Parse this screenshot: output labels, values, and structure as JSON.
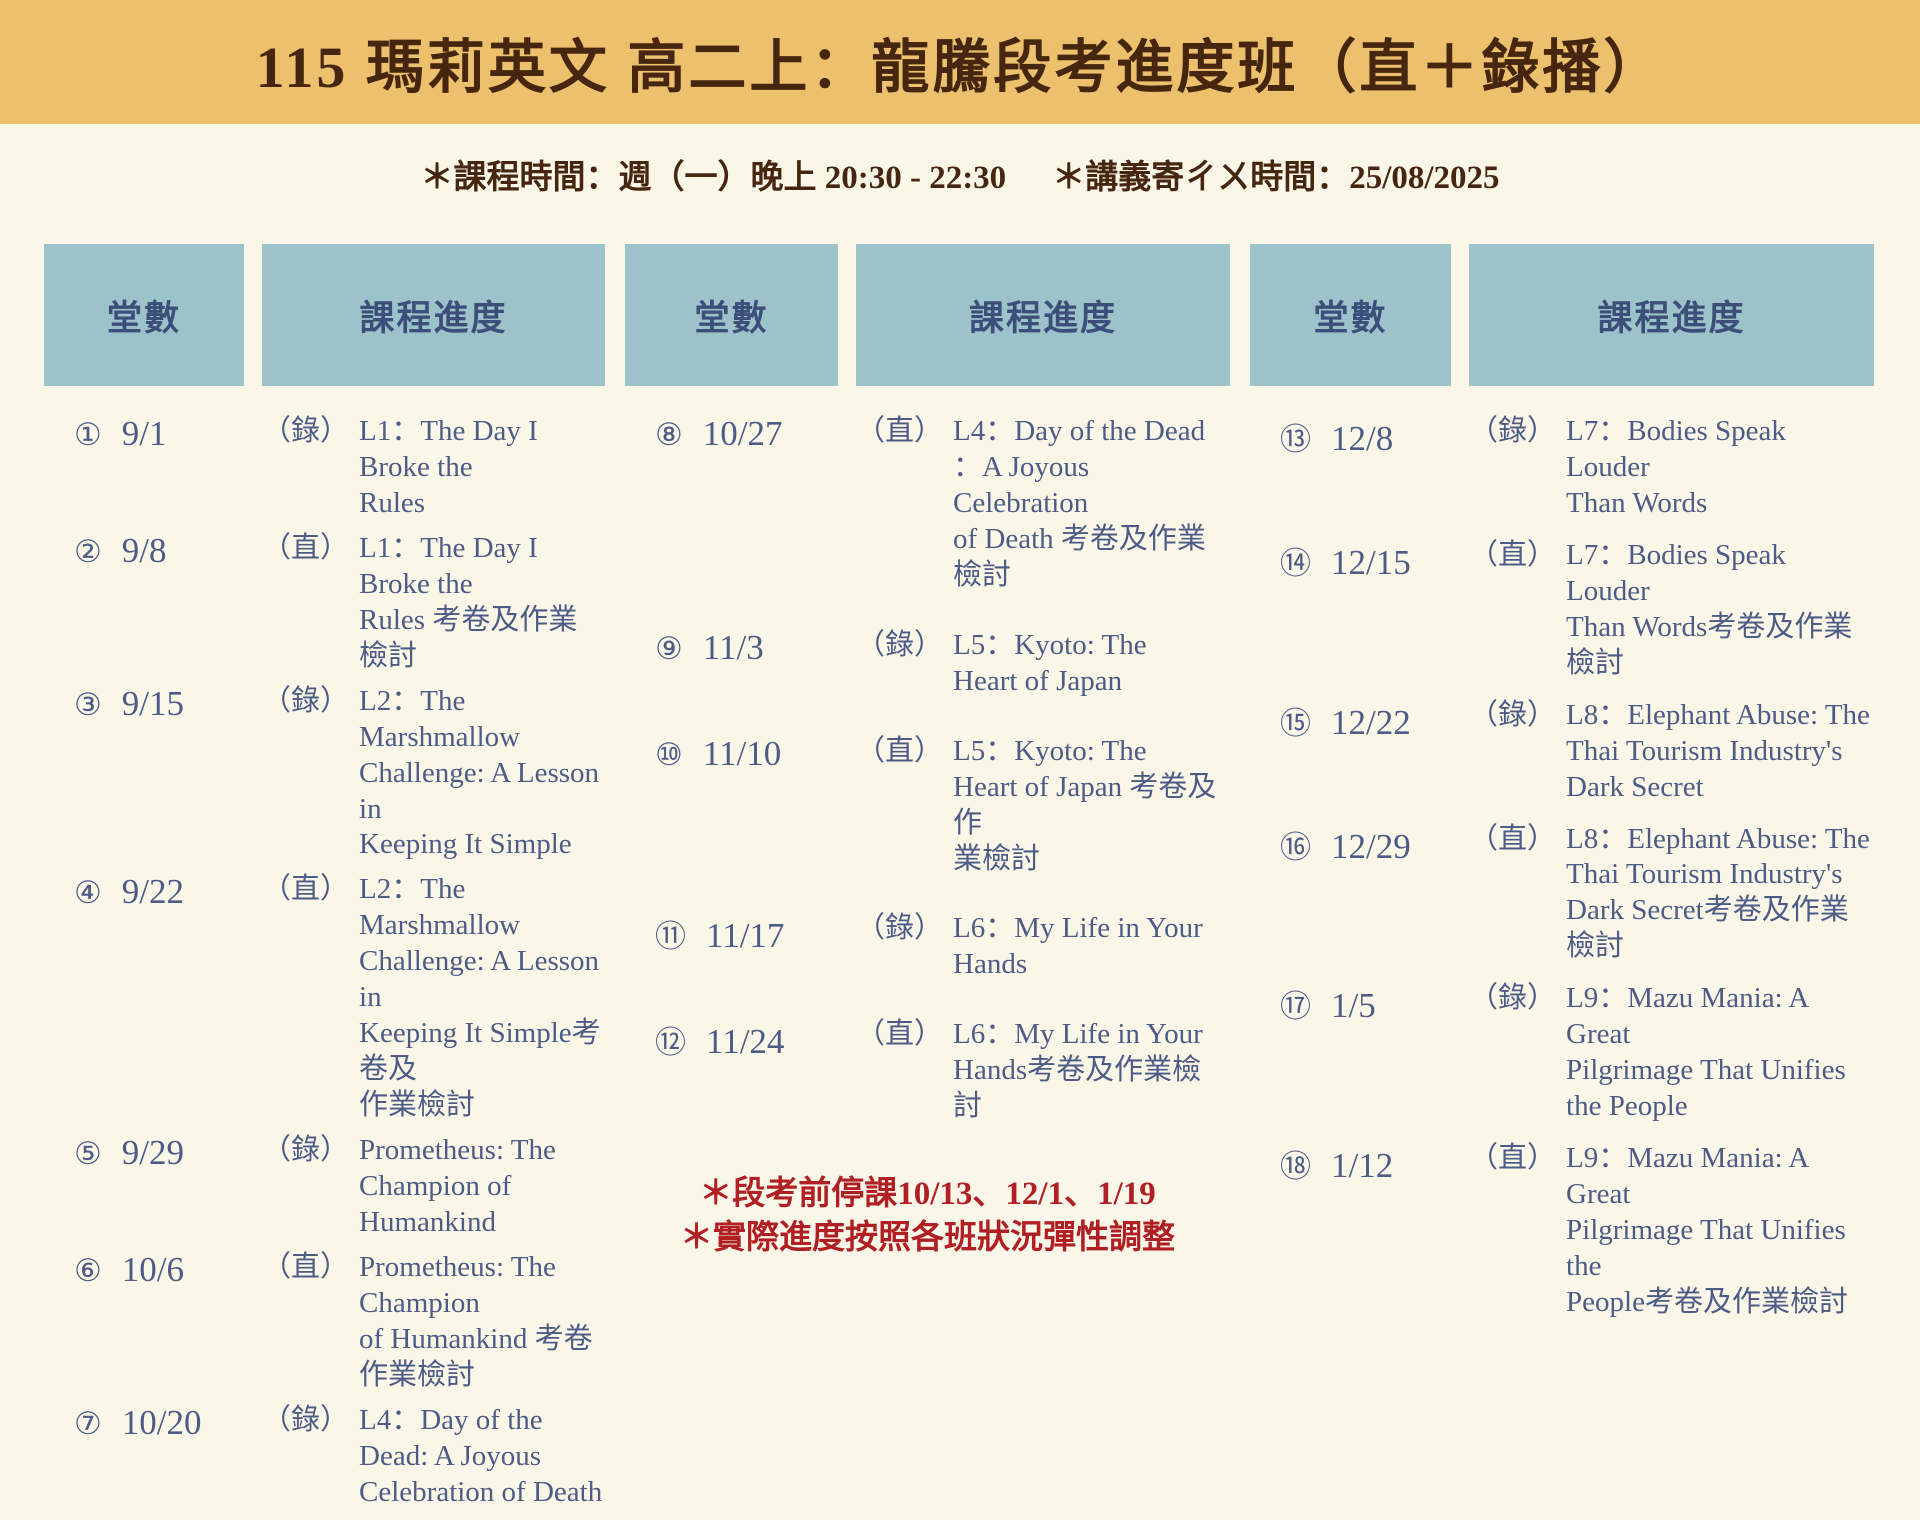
{
  "banner": {
    "title": "115 瑪莉英文 高二上：龍騰段考進度班（直＋錄播）"
  },
  "schedule_info": {
    "class_time": "＊課程時間：週（一）晚上 20:30 - 22:30",
    "handout_time": "＊講義寄ㄔㄨ時間：25/08/2025"
  },
  "table": {
    "headers": {
      "sessions": "堂數",
      "progress": "課程進度"
    }
  },
  "sessions": [
    {
      "num": "①",
      "date": "9/1",
      "tag": "（錄）",
      "text": "L1：The Day I Broke the\nRules"
    },
    {
      "num": "②",
      "date": "9/8",
      "tag": "（直）",
      "text": "L1：The Day I Broke the\nRules 考卷及作業檢討"
    },
    {
      "num": "③",
      "date": "9/15",
      "tag": "（錄）",
      "text": "L2：The Marshmallow\nChallenge: A Lesson in\nKeeping It Simple"
    },
    {
      "num": "④",
      "date": "9/22",
      "tag": "（直）",
      "text": "L2：The Marshmallow\nChallenge: A Lesson in\nKeeping It Simple考卷及\n作業檢討"
    },
    {
      "num": "⑤",
      "date": "9/29",
      "tag": "（錄）",
      "text": "Prometheus: The\nChampion of Humankind"
    },
    {
      "num": "⑥",
      "date": "10/6",
      "tag": "（直）",
      "text": "Prometheus: The Champion\nof Humankind 考卷作業檢討"
    },
    {
      "num": "⑦",
      "date": "10/20",
      "tag": "（錄）",
      "text": "L4：Day of the Dead: A Joyous\nCelebration of Death"
    },
    {
      "num": "⑧",
      "date": "10/27",
      "tag": "（直）",
      "text": "L4：Day of the Dead\n：A Joyous Celebration\nof Death 考卷及作業檢討"
    },
    {
      "num": "⑨",
      "date": "11/3",
      "tag": "（錄）",
      "text": "L5：Kyoto: The\nHeart of Japan"
    },
    {
      "num": "⑩",
      "date": "11/10",
      "tag": "（直）",
      "text": "L5：Kyoto: The\nHeart of Japan 考卷及作\n業檢討"
    },
    {
      "num": "⑪",
      "date": "11/17",
      "tag": "（錄）",
      "text": "L6：My Life in Your\nHands"
    },
    {
      "num": "⑫",
      "date": "11/24",
      "tag": "（直）",
      "text": "L6：My Life in Your\nHands考卷及作業檢討"
    },
    {
      "num": "⑬",
      "date": "12/8",
      "tag": "（錄）",
      "text": "L7：Bodies Speak Louder\nThan Words"
    },
    {
      "num": "⑭",
      "date": "12/15",
      "tag": "（直）",
      "text": "L7：Bodies Speak Louder\nThan Words考卷及作業檢討"
    },
    {
      "num": "⑮",
      "date": "12/22",
      "tag": "（錄）",
      "text": "L8：Elephant Abuse: The\nThai Tourism Industry's\nDark Secret"
    },
    {
      "num": "⑯",
      "date": "12/29",
      "tag": "（直）",
      "text": "L8：Elephant Abuse: The\nThai Tourism Industry's\nDark Secret考卷及作業檢討"
    },
    {
      "num": "⑰",
      "date": "1/5",
      "tag": "（錄）",
      "text": "L9：Mazu Mania: A Great\nPilgrimage That Unifies\nthe People"
    },
    {
      "num": "⑱",
      "date": "1/12",
      "tag": "（直）",
      "text": "L9：Mazu Mania: A Great\nPilgrimage That Unifies the\nPeople考卷及作業檢討"
    }
  ],
  "notes": {
    "line1": "＊段考前停課10/13、12/1、1/19",
    "line2": "＊實際進度按照各班狀況彈性調整"
  },
  "colors": {
    "banner_bg": "#edc06d",
    "page_bg": "#faf6e8",
    "header_bg": "#9bc3c9",
    "title_text": "#46260f",
    "header_text": "#3d4e7a",
    "body_text": "#4d5c87",
    "note_text": "#b01f24"
  }
}
